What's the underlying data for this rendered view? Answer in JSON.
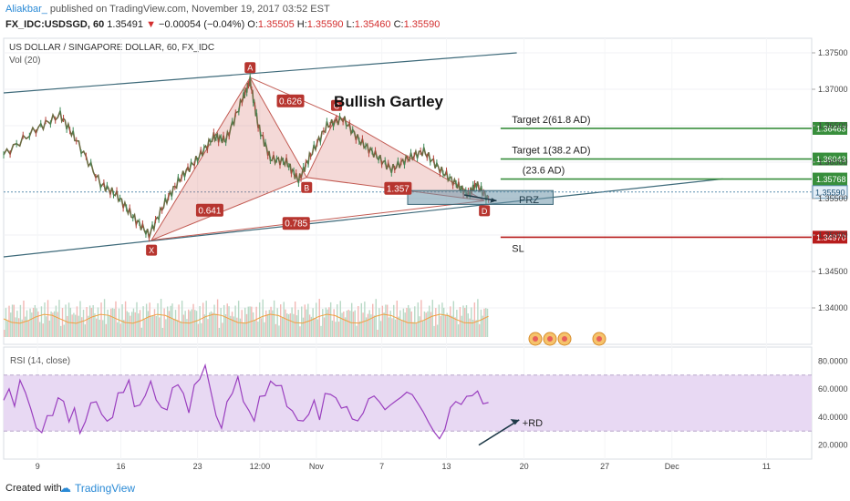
{
  "header": {
    "author": "Aliakbar_",
    "published": "published on TradingView.com, November 19, 2017 03:52 EST",
    "symbol": "FX_IDC:USDSGD, 60",
    "last": "1.35491",
    "change_arrow": "▼",
    "change": "−0.00054 (−0.04%)",
    "o_label": "O:",
    "o": "1.35505",
    "h_label": "H:",
    "h": "1.35590",
    "l_label": "L:",
    "l": "1.35460",
    "c_label": "C:",
    "c": "1.35590"
  },
  "footer": {
    "created_with": "Created with",
    "brand": "TradingView"
  },
  "chart_data": {
    "type": "line",
    "title": "US DOLLAR / SINGAPORE DOLLAR, 60, FX_IDC",
    "volume_label": "Vol (20)",
    "pattern_title": "Bullish Gartley",
    "ylim": [
      1.335,
      1.377
    ],
    "price_ticks": [
      "1.37500",
      "1.37000",
      "1.36500",
      "1.36000",
      "1.35500",
      "1.35000",
      "1.34500",
      "1.34000"
    ],
    "x_ticks": [
      "9",
      "16",
      "23",
      "12:00",
      "Nov",
      "7",
      "13",
      "20",
      "27",
      "Dec",
      "11"
    ],
    "price_series": [
      {
        "x": 0,
        "y": 1.361
      },
      {
        "x": 4,
        "y": 1.3645
      },
      {
        "x": 7,
        "y": 1.3665
      },
      {
        "x": 9,
        "y": 1.363
      },
      {
        "x": 12,
        "y": 1.357
      },
      {
        "x": 14,
        "y": 1.3555
      },
      {
        "x": 16,
        "y": 1.3525
      },
      {
        "x": 18,
        "y": 1.35
      },
      {
        "x": 20,
        "y": 1.3545
      },
      {
        "x": 22,
        "y": 1.358
      },
      {
        "x": 24,
        "y": 1.3605
      },
      {
        "x": 26,
        "y": 1.3635
      },
      {
        "x": 27.5,
        "y": 1.363
      },
      {
        "x": 29.5,
        "y": 1.3685
      },
      {
        "x": 30.5,
        "y": 1.3712
      },
      {
        "x": 31.5,
        "y": 1.365
      },
      {
        "x": 33,
        "y": 1.3605
      },
      {
        "x": 35,
        "y": 1.36
      },
      {
        "x": 36.5,
        "y": 1.3575
      },
      {
        "x": 38,
        "y": 1.361
      },
      {
        "x": 40,
        "y": 1.365
      },
      {
        "x": 42,
        "y": 1.366
      },
      {
        "x": 44,
        "y": 1.363
      },
      {
        "x": 46,
        "y": 1.361
      },
      {
        "x": 48,
        "y": 1.359
      },
      {
        "x": 50,
        "y": 1.3605
      },
      {
        "x": 52,
        "y": 1.3615
      },
      {
        "x": 54,
        "y": 1.359
      },
      {
        "x": 56,
        "y": 1.357
      },
      {
        "x": 57.5,
        "y": 1.3555
      },
      {
        "x": 58.5,
        "y": 1.357
      },
      {
        "x": 60,
        "y": 1.3549
      }
    ],
    "harmonic_points": [
      {
        "label": "X",
        "x": 18.3,
        "y": 1.3493
      },
      {
        "label": "A",
        "x": 30.5,
        "y": 1.3716
      },
      {
        "label": "B",
        "x": 37.5,
        "y": 1.3579
      },
      {
        "label": "C",
        "x": 41.2,
        "y": 1.3664
      },
      {
        "label": "D",
        "x": 59.5,
        "y": 1.3547
      }
    ],
    "ratios": [
      {
        "label": "0.626",
        "x": 35.5,
        "y": 1.3684
      },
      {
        "label": "0.641",
        "x": 25.5,
        "y": 1.3534
      },
      {
        "label": "1.357",
        "x": 48.8,
        "y": 1.3564
      },
      {
        "label": "0.785",
        "x": 36.2,
        "y": 1.3516
      }
    ],
    "levels": [
      {
        "label": "Target 2(61.8 AD)",
        "value": 1.36463,
        "value_label": "1.36463",
        "color": "#388e3c"
      },
      {
        "label": "Target 1(38.2 AD)",
        "value": 1.36043,
        "value_label": "1.36043",
        "color": "#388e3c"
      },
      {
        "label": "(23.6 AD)",
        "value": 1.35768,
        "value_label": "1.35768",
        "color": "#388e3c"
      },
      {
        "label": "SL",
        "value": 1.3497,
        "value_label": "1.34970",
        "color": "#b71c1c"
      }
    ],
    "current_price": {
      "value": 1.3559,
      "label": "1.35590"
    },
    "prz": {
      "label": "PRZ",
      "x_start": 50,
      "x_end": 68,
      "top": 1.3561,
      "bottom": 1.3542
    },
    "rsi": {
      "label": "RSI (14, close)",
      "ylim": [
        10,
        90
      ],
      "ticks": [
        "80.0000",
        "60.0000",
        "40.0000",
        "20.0000"
      ],
      "band": [
        30,
        70
      ],
      "divergence_label": "+RD",
      "values": [
        52,
        60,
        48,
        66,
        58,
        45,
        33,
        28,
        42,
        40,
        55,
        50,
        38,
        45,
        30,
        35,
        52,
        49,
        44,
        35,
        42,
        55,
        60,
        64,
        50,
        46,
        58,
        63,
        55,
        44,
        48,
        58,
        66,
        54,
        46,
        60,
        70,
        74,
        62,
        38,
        35,
        48,
        60,
        66,
        54,
        42,
        40,
        52,
        58,
        63,
        65,
        60,
        50,
        42,
        40,
        35,
        44,
        50,
        40,
        55,
        58,
        52,
        48,
        46,
        40,
        36,
        44,
        52,
        56,
        50,
        46,
        48,
        52,
        54,
        58,
        56,
        50,
        44,
        36,
        30,
        24,
        32,
        46,
        52,
        48,
        56,
        54,
        60,
        48,
        52
      ]
    }
  }
}
